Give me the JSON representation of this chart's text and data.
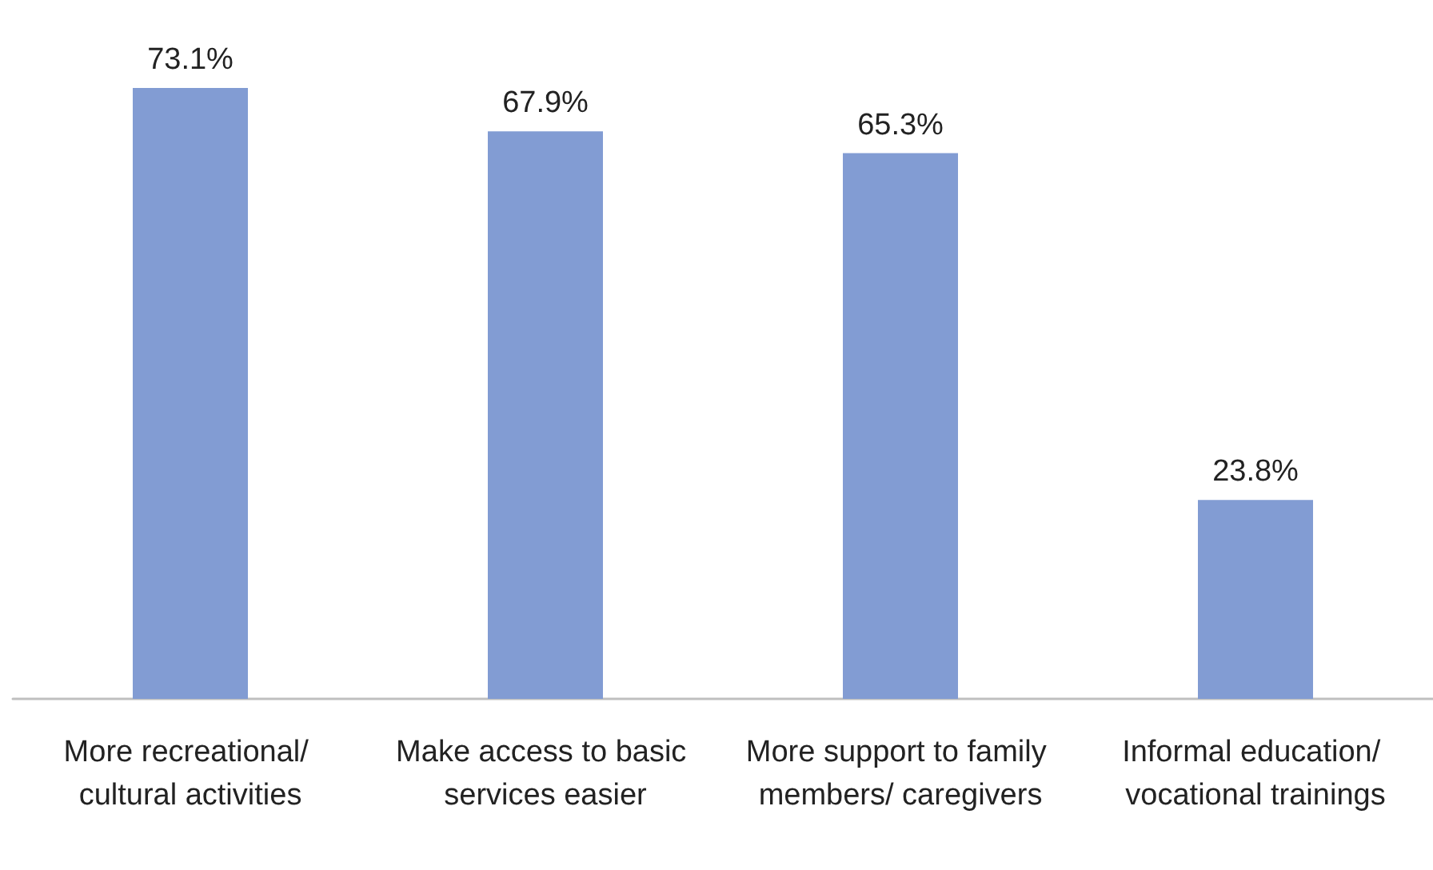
{
  "chart_data": {
    "type": "bar",
    "categories": [
      "More recreational/ cultural activities",
      "Make access to basic services easier",
      "More support to family members/ caregivers",
      "Informal education/ vocational trainings"
    ],
    "values": [
      73.1,
      67.9,
      65.3,
      23.8
    ],
    "value_labels": [
      "73.1%",
      "67.9%",
      "65.3%",
      "23.8%"
    ],
    "color": "#829cd3"
  }
}
